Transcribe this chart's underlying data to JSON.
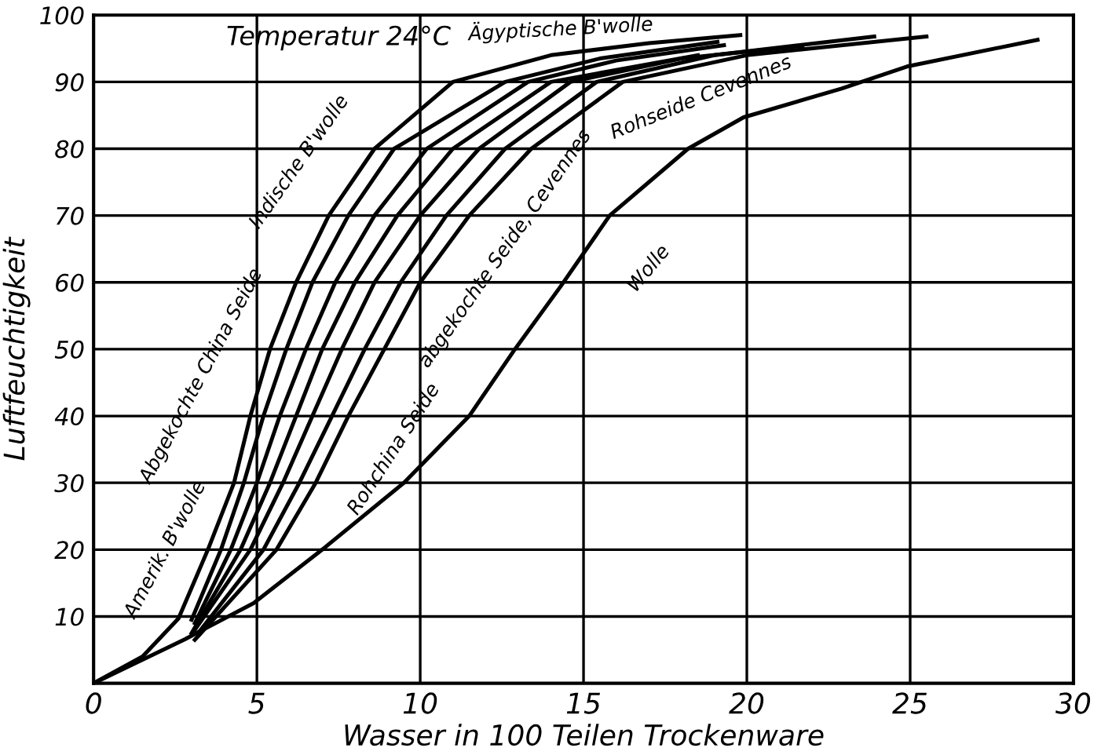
{
  "chart_data": {
    "type": "line",
    "xlabel": "Wasser in 100 Teilen Trockenware",
    "ylabel": "Luftfeuchtigkeit",
    "xlim": [
      0,
      30
    ],
    "ylim": [
      0,
      100
    ],
    "xticks": [
      0,
      5,
      10,
      15,
      20,
      25,
      30
    ],
    "yticks": [
      10,
      20,
      30,
      40,
      50,
      60,
      70,
      80,
      90,
      100
    ],
    "grid": true,
    "marker": "none",
    "line_style": "solid",
    "series": [
      {
        "color": "#000000",
        "x": [
          0,
          1.5,
          2.6,
          3.5,
          4.3,
          4.8,
          5.4,
          6.2,
          7.2,
          8.6,
          11.0,
          14.0,
          17.0,
          19.8
        ],
        "values": [
          0,
          4,
          9.7,
          20,
          30,
          40,
          50,
          60,
          70,
          80,
          90,
          94,
          95.8,
          97
        ]
      },
      {
        "color": "#000000",
        "x": [
          3.0,
          3.9,
          4.6,
          5.2,
          5.9,
          6.7,
          7.8,
          9.2,
          12.6,
          15.5,
          19.1
        ],
        "values": [
          9.5,
          20,
          30,
          40,
          50,
          60,
          70,
          80,
          90,
          93.5,
          96
        ]
      },
      {
        "color": "#000000",
        "x": [
          3.1,
          4.2,
          5.0,
          5.7,
          6.5,
          7.4,
          8.6,
          10.2,
          13.3,
          16.0,
          19.3
        ],
        "values": [
          9,
          20,
          30,
          40,
          50,
          60,
          70,
          80,
          90,
          93.2,
          95.5
        ]
      },
      {
        "color": "#000000",
        "x": [
          3.0,
          4.5,
          5.4,
          6.2,
          7.0,
          8.0,
          9.3,
          11.0,
          14.0,
          18.5
        ],
        "values": [
          7.5,
          20,
          30,
          40,
          50,
          60,
          70,
          80,
          90,
          94
        ]
      },
      {
        "color": "#000000",
        "x": [
          3.1,
          4.8,
          5.8,
          6.7,
          7.6,
          8.6,
          10.0,
          11.8,
          14.6,
          18.0,
          21.7
        ],
        "values": [
          8,
          20,
          30,
          40,
          50,
          60,
          70,
          80,
          90,
          93.5,
          95.4
        ]
      },
      {
        "color": "#000000",
        "x": [
          3.2,
          5.2,
          6.3,
          7.3,
          8.3,
          9.4,
          10.8,
          12.6,
          15.4,
          19.0,
          23.9
        ],
        "values": [
          7.5,
          20,
          30,
          40,
          50,
          60,
          70,
          80,
          90,
          94,
          96.8
        ]
      },
      {
        "color": "#000000",
        "x": [
          3.1,
          5.6,
          6.8,
          7.8,
          8.9,
          10.0,
          11.5,
          13.4,
          16.2,
          20.0,
          25.5
        ],
        "values": [
          6.5,
          20,
          30,
          40,
          50,
          60,
          70,
          80,
          90,
          94,
          96.8
        ]
      },
      {
        "color": "#000000",
        "x": [
          0,
          2.8,
          4.9,
          7.1,
          9.5,
          11.5,
          12.9,
          14.3,
          15.8,
          18.2,
          19.9,
          22.9,
          24.9,
          28.9
        ],
        "values": [
          0,
          6.6,
          12,
          20.4,
          30,
          40,
          50,
          59.4,
          70,
          80,
          84.7,
          89,
          92.3,
          96.3
        ]
      }
    ],
    "annotations": [
      "Temperatur 24°C",
      "Amerik. B'wolle",
      "Indische B'wolle",
      "Ägyptische B'wolle",
      "abgekochte Seide, Cevennes",
      "Abgekochte China Seide",
      "Rohseide Cevennes",
      "Rohchina Seide",
      "Wolle"
    ]
  }
}
